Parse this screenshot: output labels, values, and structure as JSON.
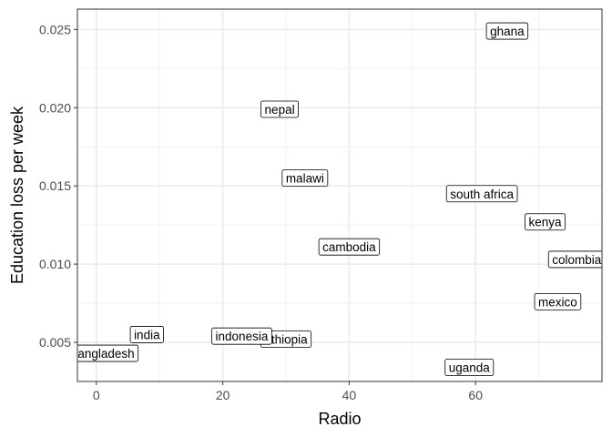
{
  "chart_data": {
    "type": "scatter",
    "title": "",
    "xlabel": "Radio",
    "ylabel": "Education loss per week",
    "xlim": [
      -3,
      80
    ],
    "ylim": [
      0.0025,
      0.0263
    ],
    "x_ticks": [
      0,
      20,
      40,
      60
    ],
    "x_tick_labels": [
      "0",
      "20",
      "40",
      "60"
    ],
    "y_ticks": [
      0.005,
      0.01,
      0.015,
      0.02,
      0.025
    ],
    "y_tick_labels": [
      "0.005",
      "0.010",
      "0.015",
      "0.020",
      "0.025"
    ],
    "grid": true,
    "marker": "text-label",
    "points": [
      {
        "label": "ghana",
        "x": 65,
        "y": 0.0249
      },
      {
        "label": "nepal",
        "x": 29,
        "y": 0.0199
      },
      {
        "label": "malawi",
        "x": 33,
        "y": 0.0155
      },
      {
        "label": "south africa",
        "x": 61,
        "y": 0.0145
      },
      {
        "label": "kenya",
        "x": 71,
        "y": 0.0127
      },
      {
        "label": "cambodia",
        "x": 40,
        "y": 0.0111
      },
      {
        "label": "colombia",
        "x": 76,
        "y": 0.0103
      },
      {
        "label": "mexico",
        "x": 73,
        "y": 0.0076
      },
      {
        "label": "india",
        "x": 8,
        "y": 0.0055
      },
      {
        "label": "ethiopia",
        "x": 30,
        "y": 0.0052
      },
      {
        "label": "indonesia",
        "x": 23,
        "y": 0.0054
      },
      {
        "label": "bangladesh",
        "x": 1,
        "y": 0.0043
      },
      {
        "label": "uganda",
        "x": 59,
        "y": 0.0034
      }
    ]
  }
}
